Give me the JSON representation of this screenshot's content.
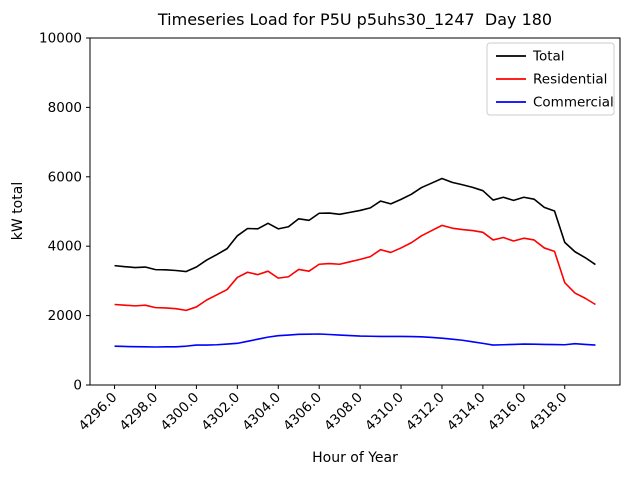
{
  "chart": {
    "title": "Timeseries Load for P5U p5uhs30_1247  Day 180",
    "x_axis_label": "Hour of Year",
    "y_axis_label": "kW total",
    "legend_entries": [
      "Total",
      "Residential",
      "Commercial"
    ],
    "background_color": "#ffffff",
    "spine_color": "#000000"
  },
  "chart_data": {
    "type": "line",
    "title": "Timeseries Load for P5U p5uhs30_1247  Day 180",
    "xlabel": "Hour of Year",
    "ylabel": "kW total",
    "xlim": [
      4294.8,
      4320.7
    ],
    "ylim": [
      0,
      10000
    ],
    "xticks": [
      4296,
      4298,
      4300,
      4302,
      4304,
      4306,
      4308,
      4310,
      4312,
      4314,
      4316,
      4318
    ],
    "yticks": [
      0,
      2000,
      4000,
      6000,
      8000,
      10000
    ],
    "grid": false,
    "legend_position": "upper right",
    "x": [
      4296.0,
      4296.5,
      4297.0,
      4297.5,
      4298.0,
      4298.5,
      4299.0,
      4299.5,
      4300.0,
      4300.5,
      4301.0,
      4301.5,
      4302.0,
      4302.5,
      4303.0,
      4303.5,
      4304.0,
      4304.5,
      4305.0,
      4305.5,
      4306.0,
      4306.5,
      4307.0,
      4307.5,
      4308.0,
      4308.5,
      4309.0,
      4309.5,
      4310.0,
      4310.5,
      4311.0,
      4311.5,
      4312.0,
      4312.5,
      4313.0,
      4313.5,
      4314.0,
      4314.5,
      4315.0,
      4315.5,
      4316.0,
      4316.5,
      4317.0,
      4317.5,
      4318.0,
      4318.5,
      4319.0,
      4319.5
    ],
    "series": [
      {
        "name": "Total",
        "color": "#000000",
        "values": [
          3440,
          3410,
          3385,
          3400,
          3325,
          3320,
          3300,
          3270,
          3400,
          3600,
          3760,
          3930,
          4300,
          4510,
          4500,
          4660,
          4500,
          4560,
          4790,
          4745,
          4950,
          4955,
          4920,
          4975,
          5030,
          5105,
          5300,
          5220,
          5350,
          5495,
          5690,
          5820,
          5950,
          5840,
          5770,
          5695,
          5600,
          5330,
          5410,
          5320,
          5410,
          5355,
          5120,
          5015,
          4110,
          3840,
          3670,
          3470
        ]
      },
      {
        "name": "Residential",
        "color": "#ff0000",
        "values": [
          2320,
          2300,
          2280,
          2300,
          2230,
          2220,
          2200,
          2150,
          2250,
          2450,
          2600,
          2750,
          3100,
          3250,
          3180,
          3280,
          3080,
          3120,
          3330,
          3280,
          3480,
          3500,
          3480,
          3550,
          3620,
          3700,
          3900,
          3820,
          3950,
          4100,
          4300,
          4450,
          4600,
          4520,
          4480,
          4450,
          4400,
          4180,
          4250,
          4150,
          4230,
          4180,
          3950,
          3850,
          2950,
          2650,
          2500,
          2320
        ]
      },
      {
        "name": "Commercial",
        "color": "#0000ff",
        "values": [
          1120,
          1110,
          1105,
          1100,
          1095,
          1100,
          1100,
          1120,
          1150,
          1150,
          1160,
          1180,
          1200,
          1260,
          1320,
          1380,
          1420,
          1440,
          1460,
          1465,
          1470,
          1455,
          1440,
          1425,
          1410,
          1405,
          1400,
          1400,
          1400,
          1395,
          1390,
          1370,
          1350,
          1320,
          1290,
          1245,
          1200,
          1150,
          1160,
          1170,
          1180,
          1175,
          1170,
          1165,
          1160,
          1190,
          1170,
          1150
        ]
      }
    ]
  }
}
